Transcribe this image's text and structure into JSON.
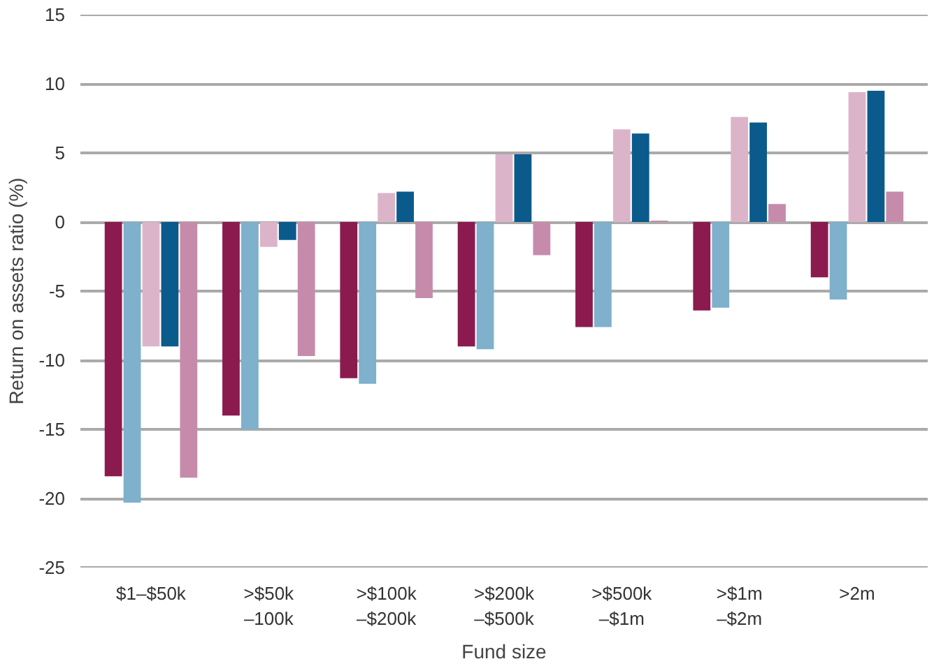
{
  "chart_data": {
    "type": "bar",
    "xlabel": "Fund size",
    "ylabel": "Return on assets ratio (%)",
    "categories": [
      "$1–$50k",
      ">$50k\n–100k",
      ">$100k\n–$200k",
      ">$200k\n–$500k",
      ">$500k\n–$1m",
      ">$1m\n–$2m",
      ">2m"
    ],
    "series": [
      {
        "color": "#8b1a4f",
        "values": [
          -18.4,
          -14.0,
          -11.3,
          -9.0,
          -7.6,
          -6.4,
          -4.0
        ]
      },
      {
        "color": "#7fb0cc",
        "values": [
          -20.3,
          -15.0,
          -11.7,
          -9.2,
          -7.6,
          -6.2,
          -5.6
        ]
      },
      {
        "color": "#dcb4c9",
        "values": [
          -9.0,
          -1.8,
          2.1,
          4.9,
          6.7,
          7.6,
          9.4
        ]
      },
      {
        "color": "#0b5a8c",
        "values": [
          -9.0,
          -1.3,
          2.2,
          4.9,
          6.4,
          7.2,
          9.5
        ]
      },
      {
        "color": "#c68bab",
        "values": [
          -18.5,
          -9.7,
          -5.5,
          -2.4,
          0.1,
          1.3,
          2.2
        ]
      }
    ],
    "ylim": [
      -25,
      15
    ],
    "yticks": [
      -25,
      -20,
      -15,
      -10,
      -5,
      0,
      5,
      10,
      15
    ],
    "grid": "y"
  }
}
